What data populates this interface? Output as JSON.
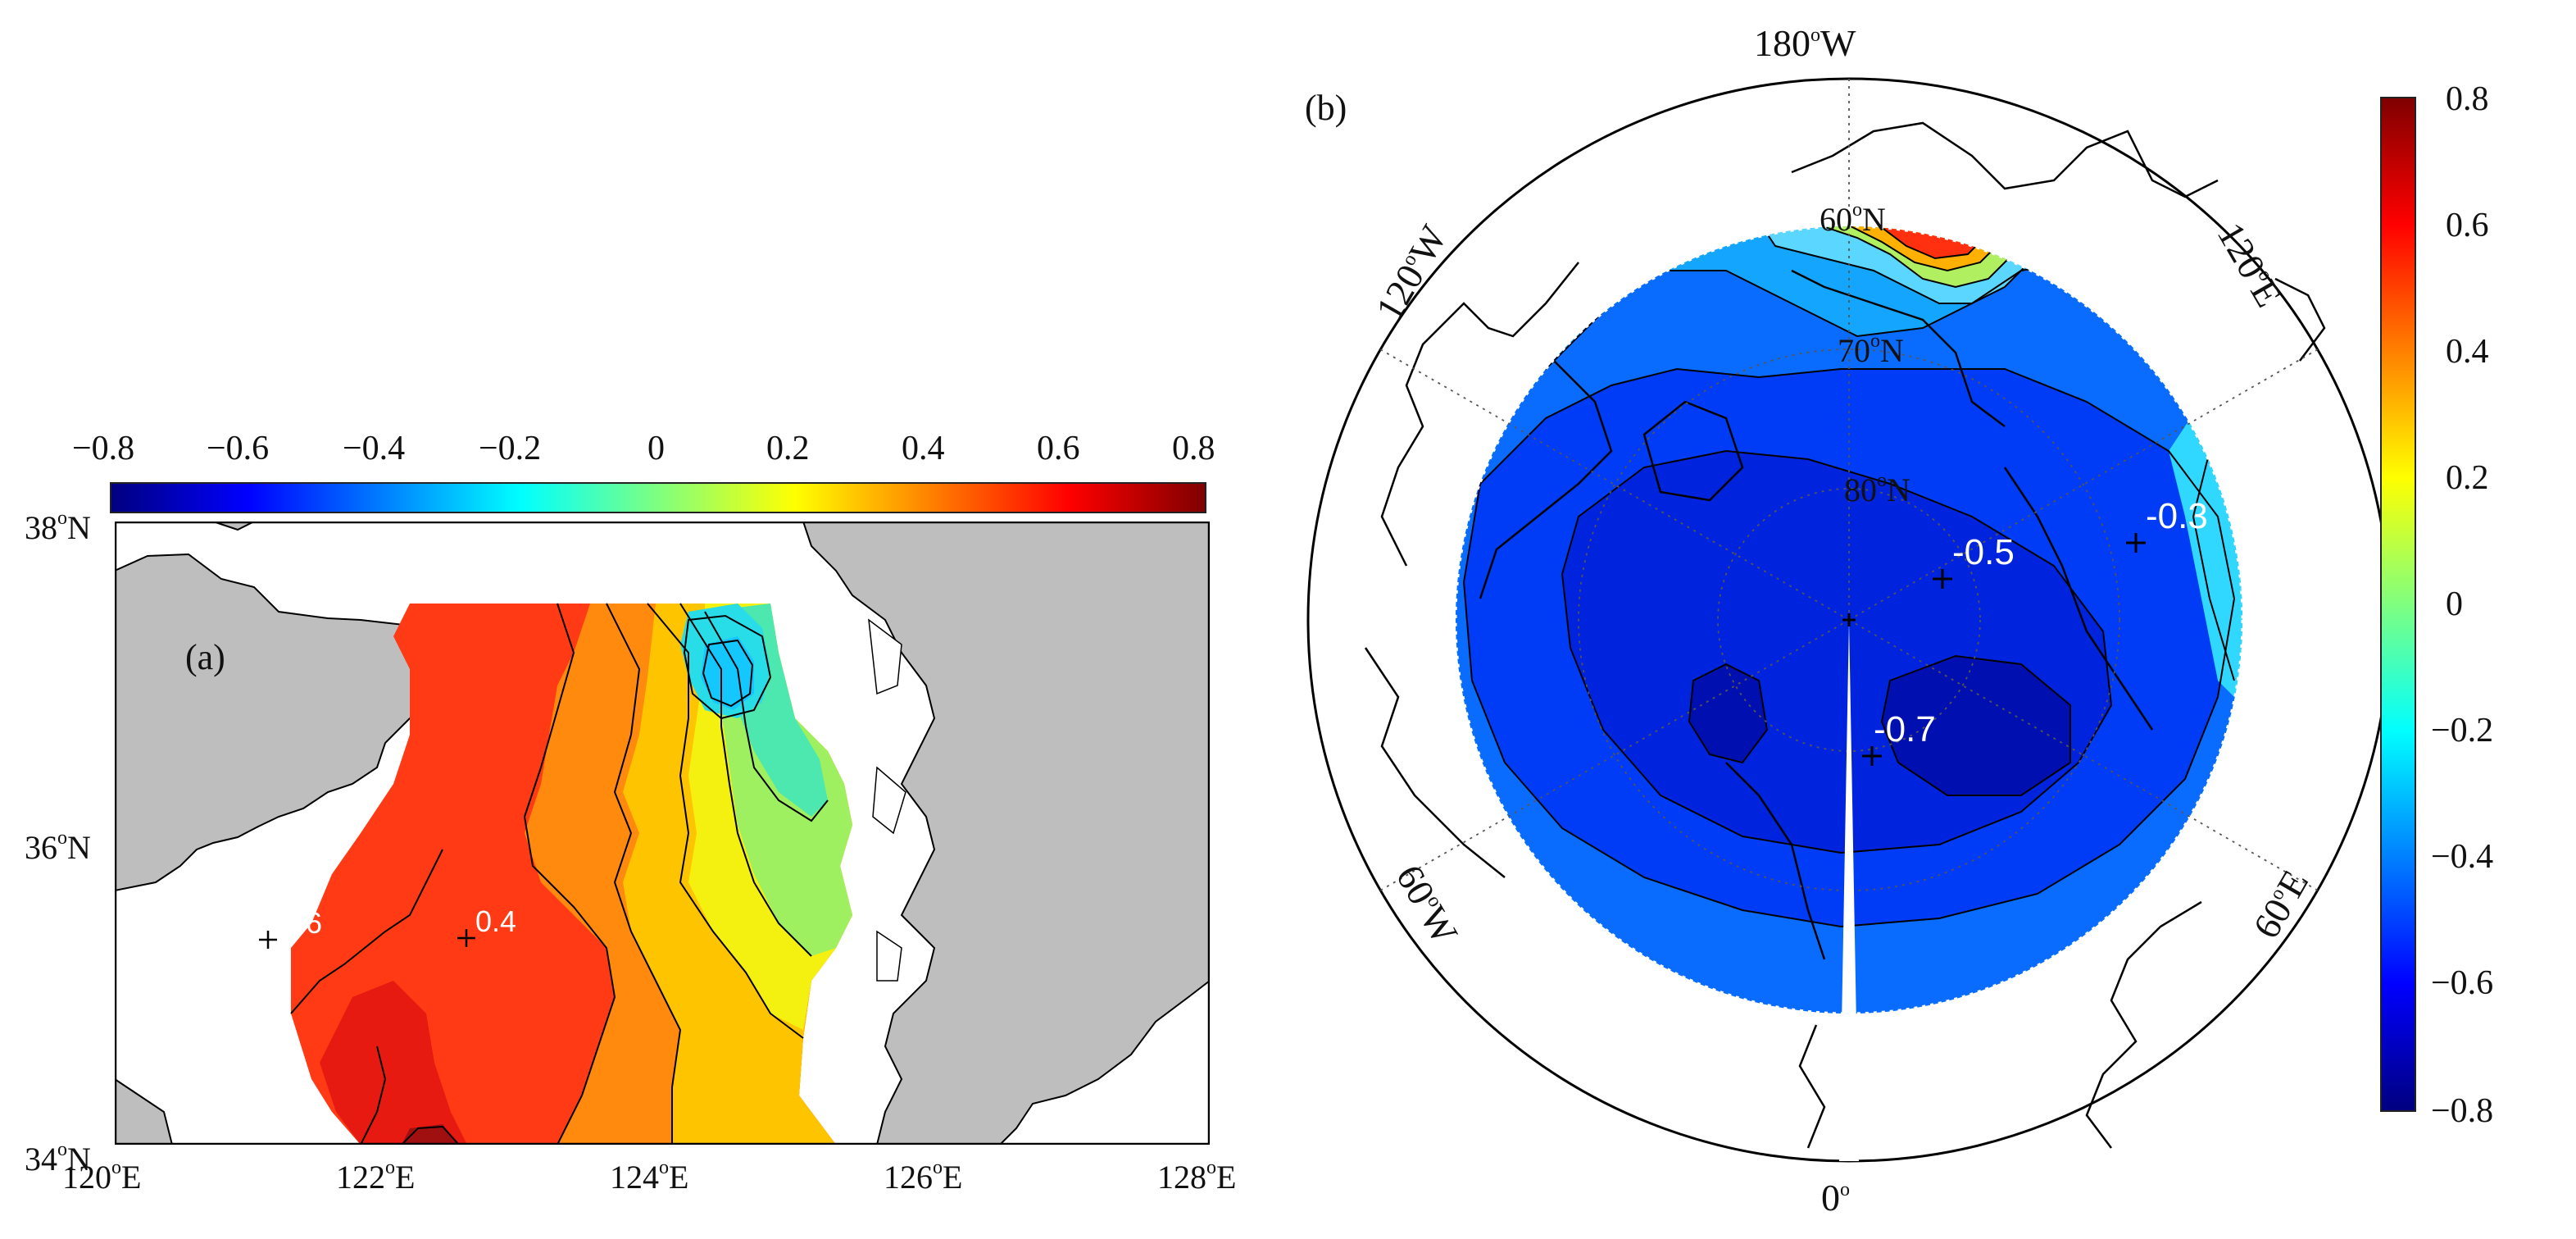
{
  "panel_a": {
    "label": "(a)",
    "colorbar": {
      "ticks": [
        "−0.8",
        "−0.6",
        "−0.4",
        "−0.2",
        "0",
        "0.2",
        "0.4",
        "0.6",
        "0.8"
      ],
      "range": [
        -0.8,
        0.8
      ],
      "orientation": "horizontal-top"
    },
    "lat_labels": [
      {
        "deg": "38",
        "hemi": "N"
      },
      {
        "deg": "36",
        "hemi": "N"
      },
      {
        "deg": "34",
        "hemi": "N"
      }
    ],
    "lon_labels": [
      {
        "deg": "120",
        "hemi": "E"
      },
      {
        "deg": "122",
        "hemi": "E"
      },
      {
        "deg": "124",
        "hemi": "E"
      },
      {
        "deg": "126",
        "hemi": "E"
      },
      {
        "deg": "128",
        "hemi": "E"
      }
    ],
    "contour_labels": [
      "0.6",
      "0.4"
    ],
    "land_color": "#bebebe"
  },
  "panel_b": {
    "label": "(b)",
    "colorbar": {
      "ticks": [
        "0.8",
        "0.6",
        "0.4",
        "0.2",
        "0",
        "−0.2",
        "−0.4",
        "−0.6",
        "−0.8"
      ],
      "range": [
        -0.8,
        0.8
      ],
      "orientation": "vertical-right"
    },
    "meridian_labels": [
      {
        "deg": "180",
        "hemi": "W"
      },
      {
        "deg": "120",
        "hemi": "W"
      },
      {
        "deg": "120",
        "hemi": "E"
      },
      {
        "deg": "60",
        "hemi": "W"
      },
      {
        "deg": "60",
        "hemi": "E"
      },
      {
        "deg": "0",
        "hemi": ""
      }
    ],
    "parallel_labels": [
      {
        "deg": "60",
        "hemi": "N"
      },
      {
        "deg": "70",
        "hemi": "N"
      },
      {
        "deg": "80",
        "hemi": "N"
      }
    ],
    "contour_labels": [
      "-0.5",
      "-0.3",
      "-0.7"
    ]
  },
  "colors": {
    "jet": [
      "#00007f",
      "#0000ff",
      "#007fff",
      "#00ffff",
      "#7fff7f",
      "#ffff00",
      "#ff7f00",
      "#ff0000",
      "#7f0000"
    ],
    "land": "#bebebe",
    "ocean": "#ffffff"
  }
}
